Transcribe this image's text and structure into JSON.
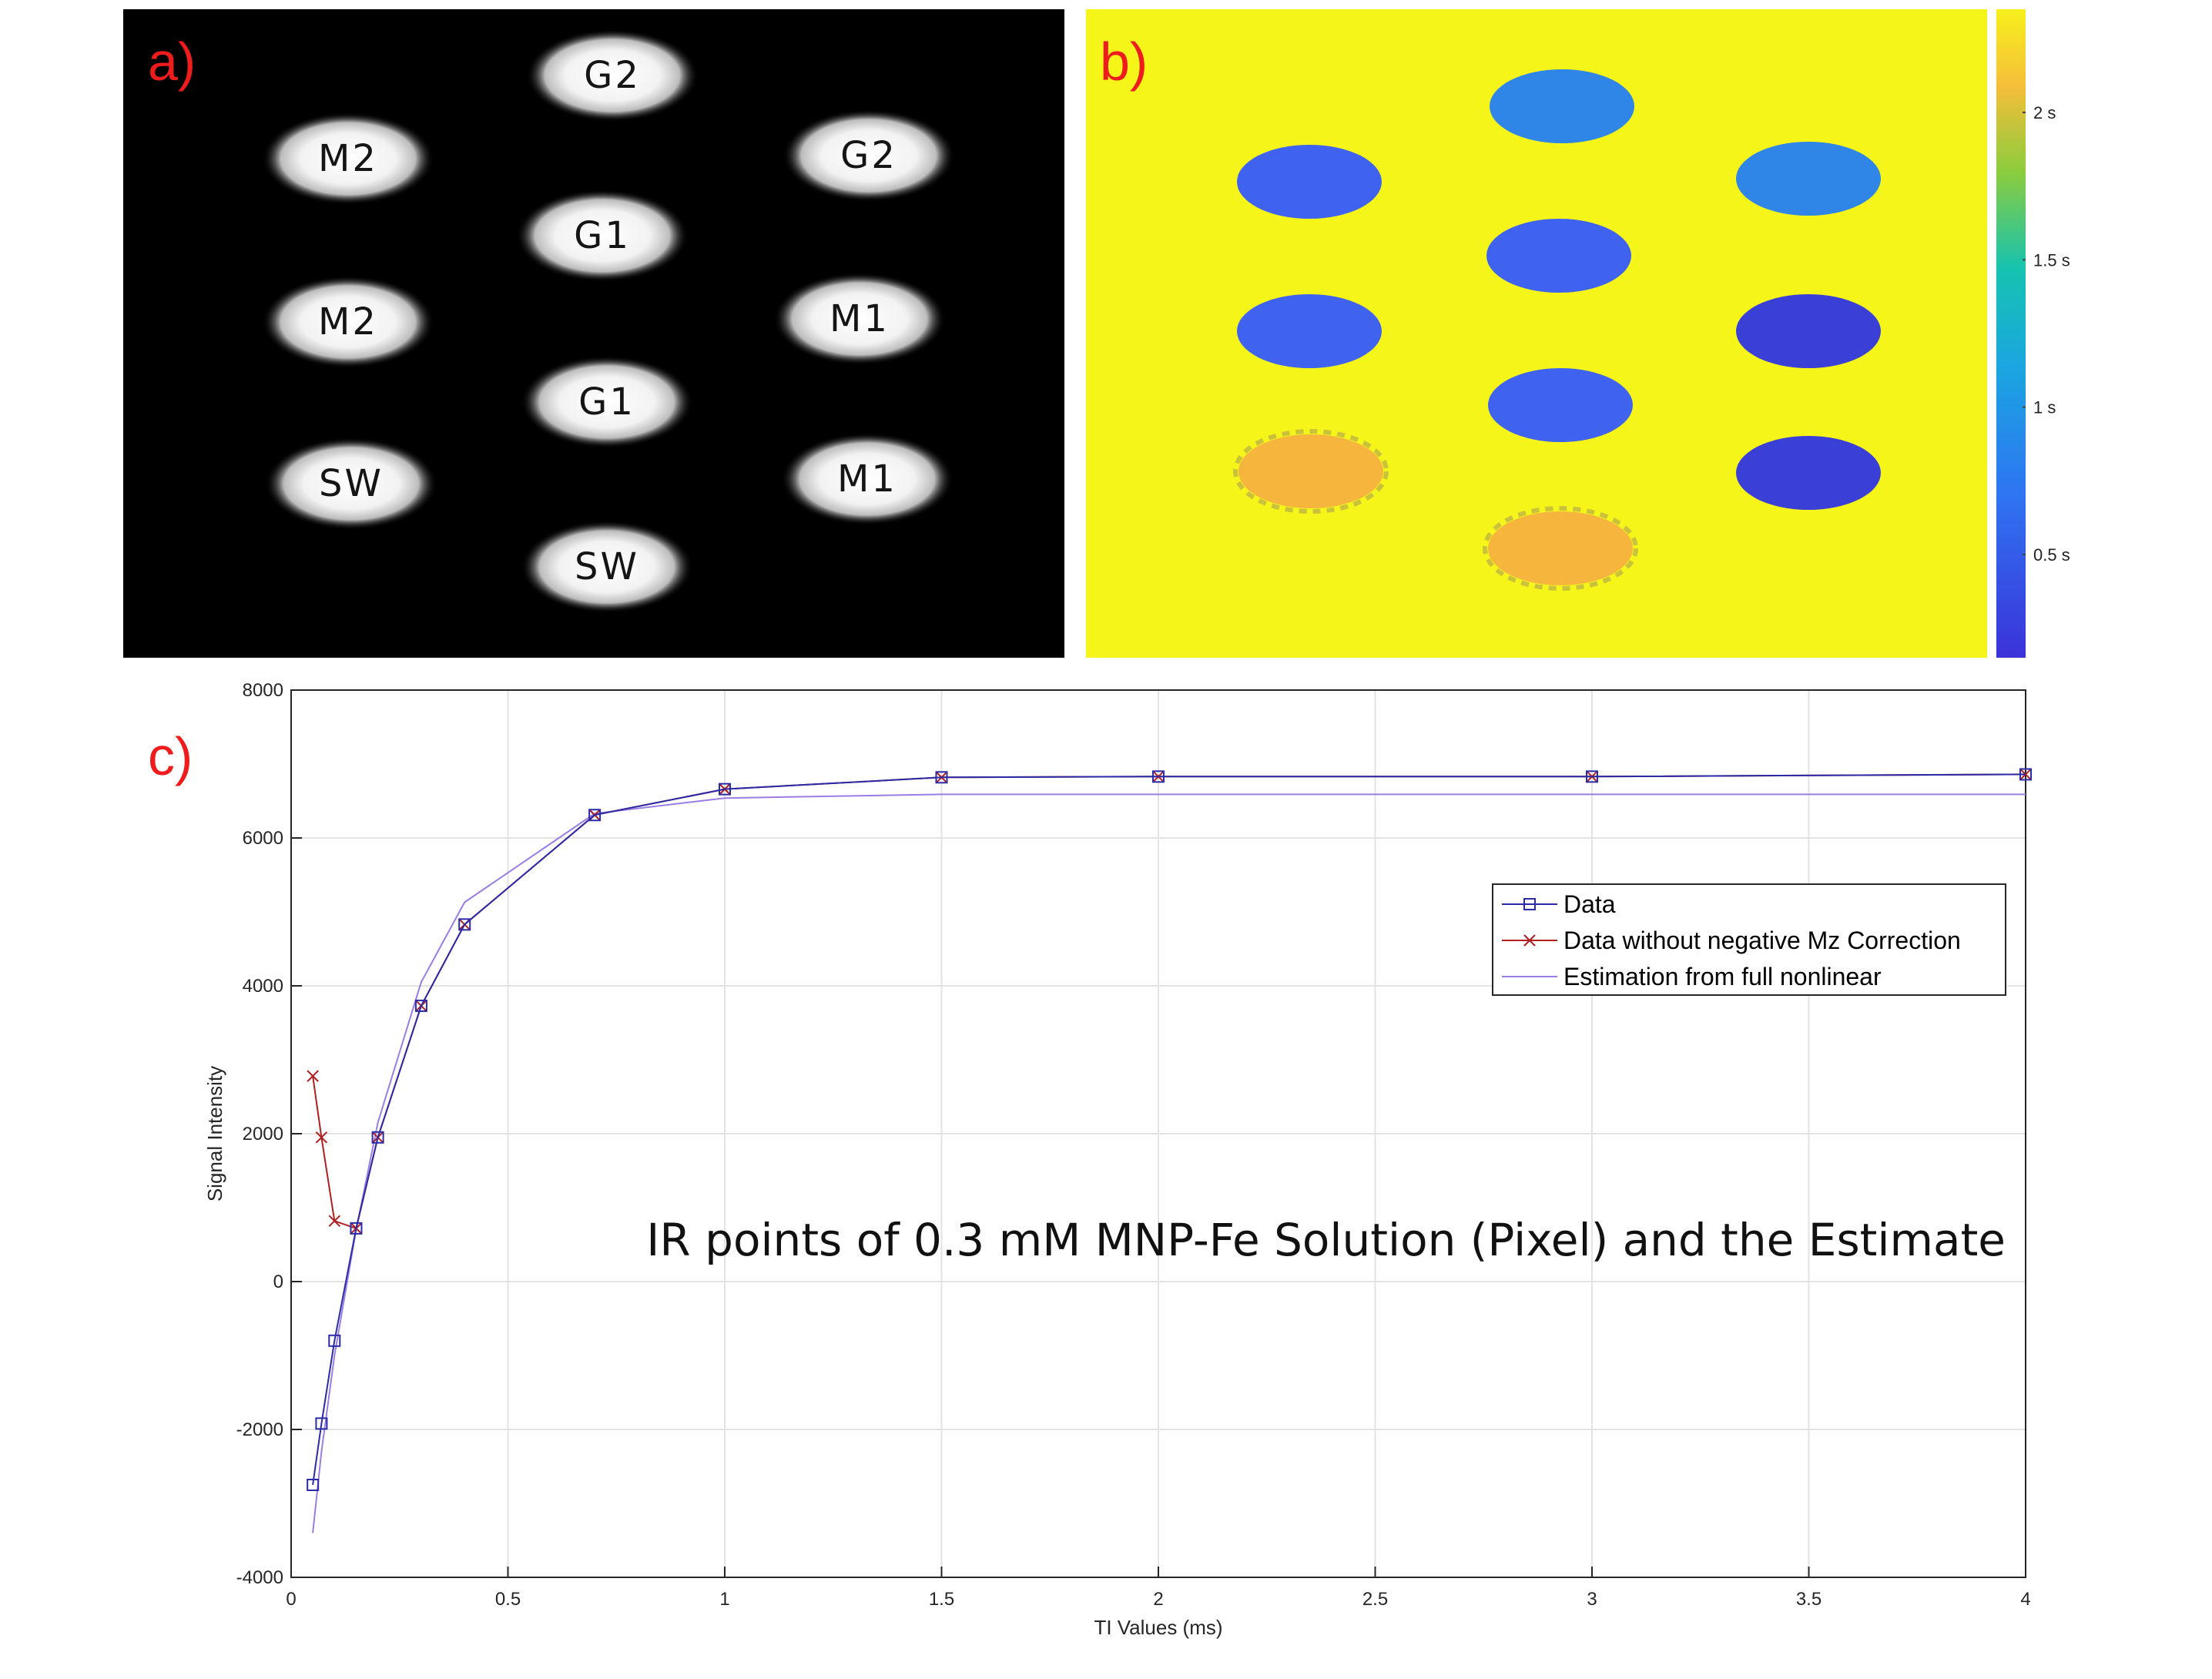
{
  "panel_a": {
    "label": "a)",
    "samples": [
      {
        "id": "G2-top",
        "text": "G2"
      },
      {
        "id": "M2-left-1",
        "text": "M2"
      },
      {
        "id": "G2-right",
        "text": "G2"
      },
      {
        "id": "G1-center-1",
        "text": "G1"
      },
      {
        "id": "M2-left-2",
        "text": "M2"
      },
      {
        "id": "M1-right-1",
        "text": "M1"
      },
      {
        "id": "G1-center-2",
        "text": "G1"
      },
      {
        "id": "SW-left",
        "text": "SW"
      },
      {
        "id": "M1-right-2",
        "text": "M1"
      },
      {
        "id": "SW-center",
        "text": "SW"
      }
    ]
  },
  "panel_b": {
    "label": "b)",
    "colors": {
      "background": "#f5f51a",
      "blue_mid": "#2f86e6",
      "blue": "#3f63ee",
      "blue_dark": "#3a3fd6",
      "orange": "#f6b63e"
    },
    "colorbar": {
      "ticks": [
        "2 s",
        "1.5 s",
        "1 s",
        "0.5 s"
      ],
      "values": [
        2,
        1.5,
        1,
        0.5
      ],
      "range": [
        0.15,
        2.35
      ]
    }
  },
  "panel_c": {
    "label": "c)",
    "annotation": "IR points of 0.3 mM MNP-Fe Solution (Pixel) and the Estimate"
  },
  "chart_data": {
    "type": "line",
    "xlabel": "TI Values (ms)",
    "ylabel": "Signal Intensity",
    "xlim": [
      0,
      4
    ],
    "ylim": [
      -4000,
      8000
    ],
    "xticks": [
      0,
      0.5,
      1,
      1.5,
      2,
      2.5,
      3,
      3.5,
      4
    ],
    "xtick_labels": [
      "0",
      "0.5",
      "1",
      "1.5",
      "2",
      "2.5",
      "3",
      "3.5",
      "4"
    ],
    "yticks": [
      -4000,
      -2000,
      0,
      2000,
      4000,
      6000,
      8000
    ],
    "ytick_labels": [
      "-4000",
      "-2000",
      "0",
      "2000",
      "4000",
      "6000",
      "8000"
    ],
    "grid": true,
    "legend_position": "right",
    "series": [
      {
        "name": "Data",
        "color": "#2b2ba8",
        "marker": "square",
        "x": [
          0.05,
          0.07,
          0.1,
          0.15,
          0.2,
          0.3,
          0.4,
          0.7,
          1,
          1.5,
          2,
          3,
          4
        ],
        "y": [
          -2750,
          -1920,
          -800,
          720,
          1950,
          3730,
          4830,
          6310,
          6660,
          6820,
          6830,
          6830,
          6860
        ]
      },
      {
        "name": "Data without negative Mz Correction",
        "color": "#b02020",
        "marker": "x",
        "x": [
          0.05,
          0.07,
          0.1,
          0.15,
          0.2,
          0.3,
          0.4,
          0.7,
          1,
          1.5,
          2,
          3,
          4
        ],
        "y": [
          2780,
          1950,
          820,
          720,
          1950,
          3730,
          4830,
          6310,
          6660,
          6820,
          6830,
          6830,
          6860
        ]
      },
      {
        "name": "Estimation from full nonlinear",
        "color": "#9a7ee6",
        "marker": "none",
        "x": [
          0.05,
          0.07,
          0.1,
          0.15,
          0.2,
          0.3,
          0.4,
          0.7,
          1,
          1.5,
          2,
          3,
          4
        ],
        "y": [
          -3400,
          -2300,
          -1000,
          700,
          2150,
          4050,
          5130,
          6330,
          6540,
          6590,
          6590,
          6590,
          6590
        ]
      }
    ]
  }
}
